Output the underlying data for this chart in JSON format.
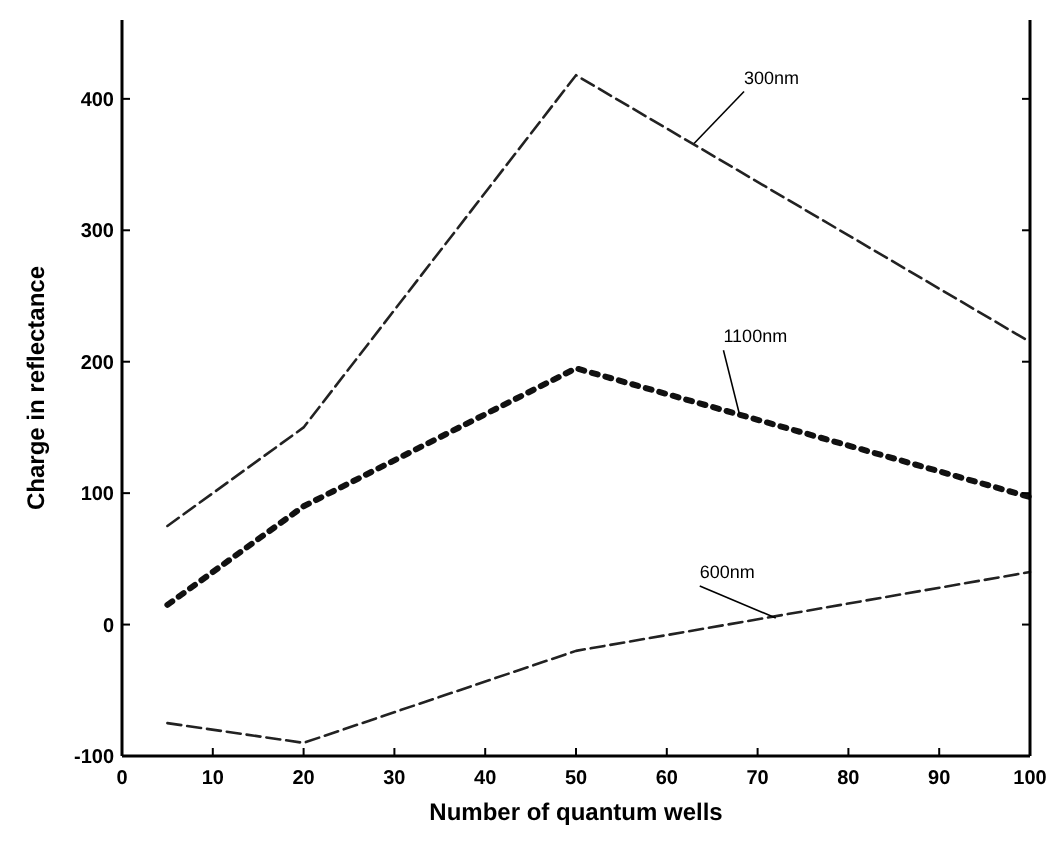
{
  "chart_data": {
    "type": "line",
    "xlabel": "Number of quantum wells",
    "ylabel": "Charge in reflectance",
    "xlim": [
      0,
      100
    ],
    "ylim": [
      -100,
      460
    ],
    "xticks": [
      0,
      10,
      20,
      30,
      40,
      50,
      60,
      70,
      80,
      90,
      100
    ],
    "yticks": [
      -100,
      0,
      100,
      200,
      300,
      400
    ],
    "grid": false,
    "marker": "none",
    "series": [
      {
        "color": "#222222",
        "line_style": "dashed",
        "x": [
          5,
          20,
          50,
          100
        ],
        "values": [
          75,
          150,
          418,
          215
        ]
      },
      {
        "color": "#111111",
        "line_style": "dotted",
        "x": [
          5,
          20,
          50,
          100
        ],
        "values": [
          15,
          90,
          195,
          97
        ]
      },
      {
        "color": "#222222",
        "line_style": "dashed",
        "x": [
          5,
          20,
          50,
          100
        ],
        "values": [
          -75,
          -90,
          -20,
          40
        ]
      }
    ],
    "annotations": [
      {
        "text": "300nm",
        "x": 63,
        "y": 366
      },
      {
        "text": "1100nm",
        "x": 68,
        "y": 160
      },
      {
        "text": "600nm",
        "x": 72,
        "y": 5
      }
    ]
  }
}
